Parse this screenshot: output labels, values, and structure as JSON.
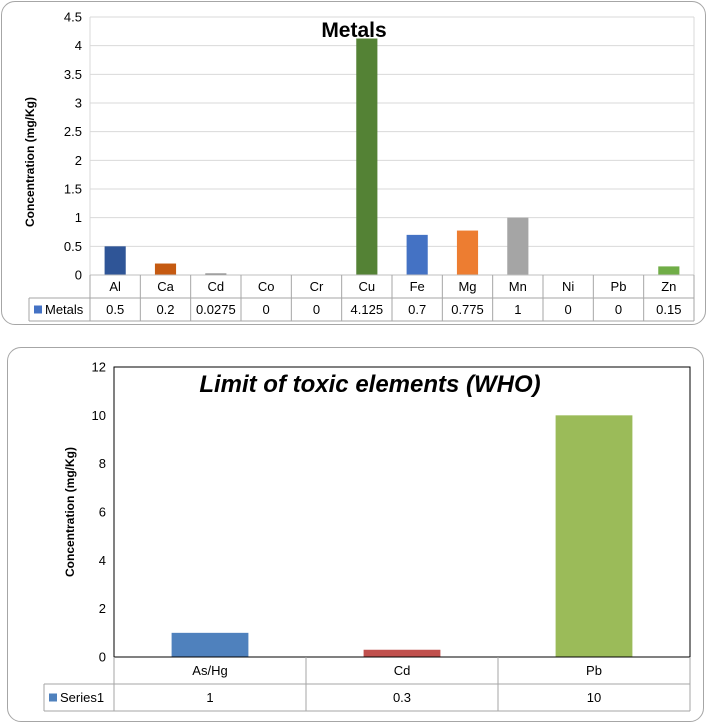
{
  "chart_data": [
    {
      "type": "bar",
      "title": "Metals",
      "ylabel": "Concentration (mg/Kg)",
      "xlabel": "",
      "ylim": [
        0,
        4.5
      ],
      "yticks": [
        "0",
        "0.5",
        "1",
        "1.5",
        "2",
        "2.5",
        "3",
        "3.5",
        "4",
        "4.5"
      ],
      "grid": true,
      "legend": "table",
      "categories": [
        "Al",
        "Ca",
        "Cd",
        "Co",
        "Cr",
        "Cu",
        "Fe",
        "Mg",
        "Mn",
        "Ni",
        "Pb",
        "Zn"
      ],
      "series": [
        {
          "name": "Metals",
          "values": [
            0.5,
            0.2,
            0.0275,
            0,
            0,
            4.125,
            0.7,
            0.775,
            1,
            0,
            0,
            0.15
          ],
          "value_labels": [
            "0.5",
            "0.2",
            "0.0275",
            "0",
            "0",
            "4.125",
            "0.7",
            "0.775",
            "1",
            "0",
            "0",
            "0.15"
          ],
          "legend_color": "#4472c4",
          "bar_colors": [
            "#2f5597",
            "#c55a11",
            "#808080",
            "#ffc000",
            "#4472c4",
            "#548235",
            "#4472c4",
            "#ed7d31",
            "#a5a5a5",
            "#ffc000",
            "#4472c4",
            "#70ad47"
          ]
        }
      ]
    },
    {
      "type": "bar",
      "title": "Limit of toxic elements (WHO)",
      "ylabel": "Concentration (mg/Kg)",
      "xlabel": "",
      "ylim": [
        0,
        12
      ],
      "yticks": [
        "0",
        "2",
        "4",
        "6",
        "8",
        "10",
        "12"
      ],
      "grid": false,
      "legend": "table",
      "categories": [
        "As/Hg",
        "Cd",
        "Pb"
      ],
      "series": [
        {
          "name": "Series1",
          "values": [
            1,
            0.3,
            10
          ],
          "value_labels": [
            "1",
            "0.3",
            "10"
          ],
          "legend_color": "#4f81bd",
          "bar_colors": [
            "#4f81bd",
            "#c0504d",
            "#9bbb59"
          ]
        }
      ]
    }
  ]
}
